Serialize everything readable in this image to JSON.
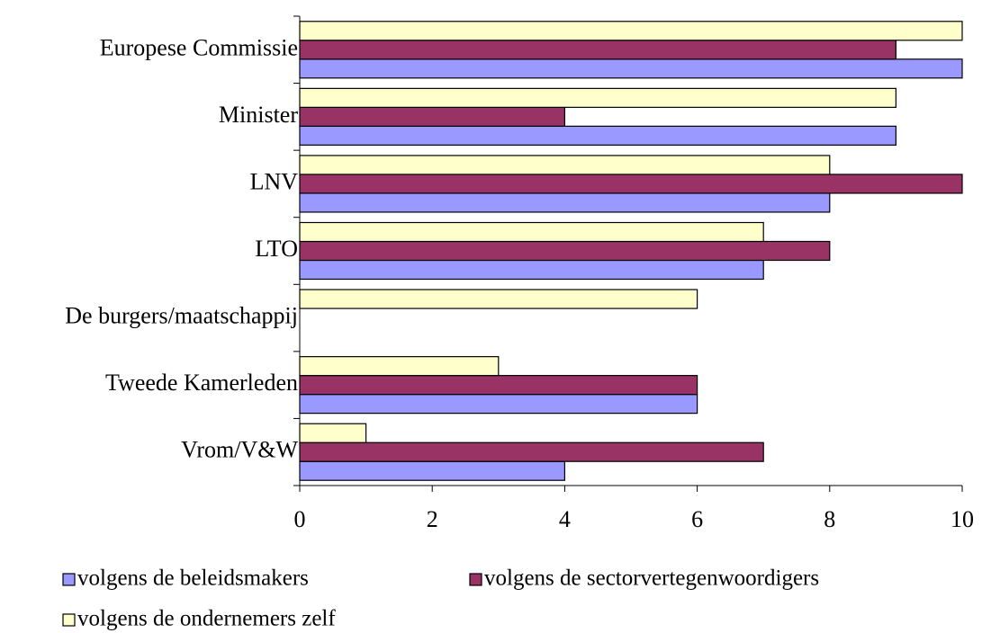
{
  "chart_data": {
    "type": "hbar",
    "categories": [
      "Europese Commissie",
      "Minister",
      "LNV",
      "LTO",
      "De burgers/maatschappij",
      "Tweede Kamerleden",
      "Vrom/V&W"
    ],
    "series": [
      {
        "name": "volgens de beleidsmakers",
        "color": "#9999ff",
        "values": [
          10,
          9,
          8,
          7,
          null,
          6,
          4
        ]
      },
      {
        "name": "volgens de sectorvertegenwoordigers",
        "color": "#993366",
        "values": [
          9,
          4,
          10,
          8,
          null,
          6,
          7
        ]
      },
      {
        "name": "volgens de ondernemers zelf",
        "color": "#ffffcc",
        "values": [
          10,
          9,
          8,
          7,
          6,
          3,
          1
        ]
      }
    ],
    "xlim": [
      0,
      10
    ],
    "xticks": [
      0,
      2,
      4,
      6,
      8,
      10
    ]
  }
}
